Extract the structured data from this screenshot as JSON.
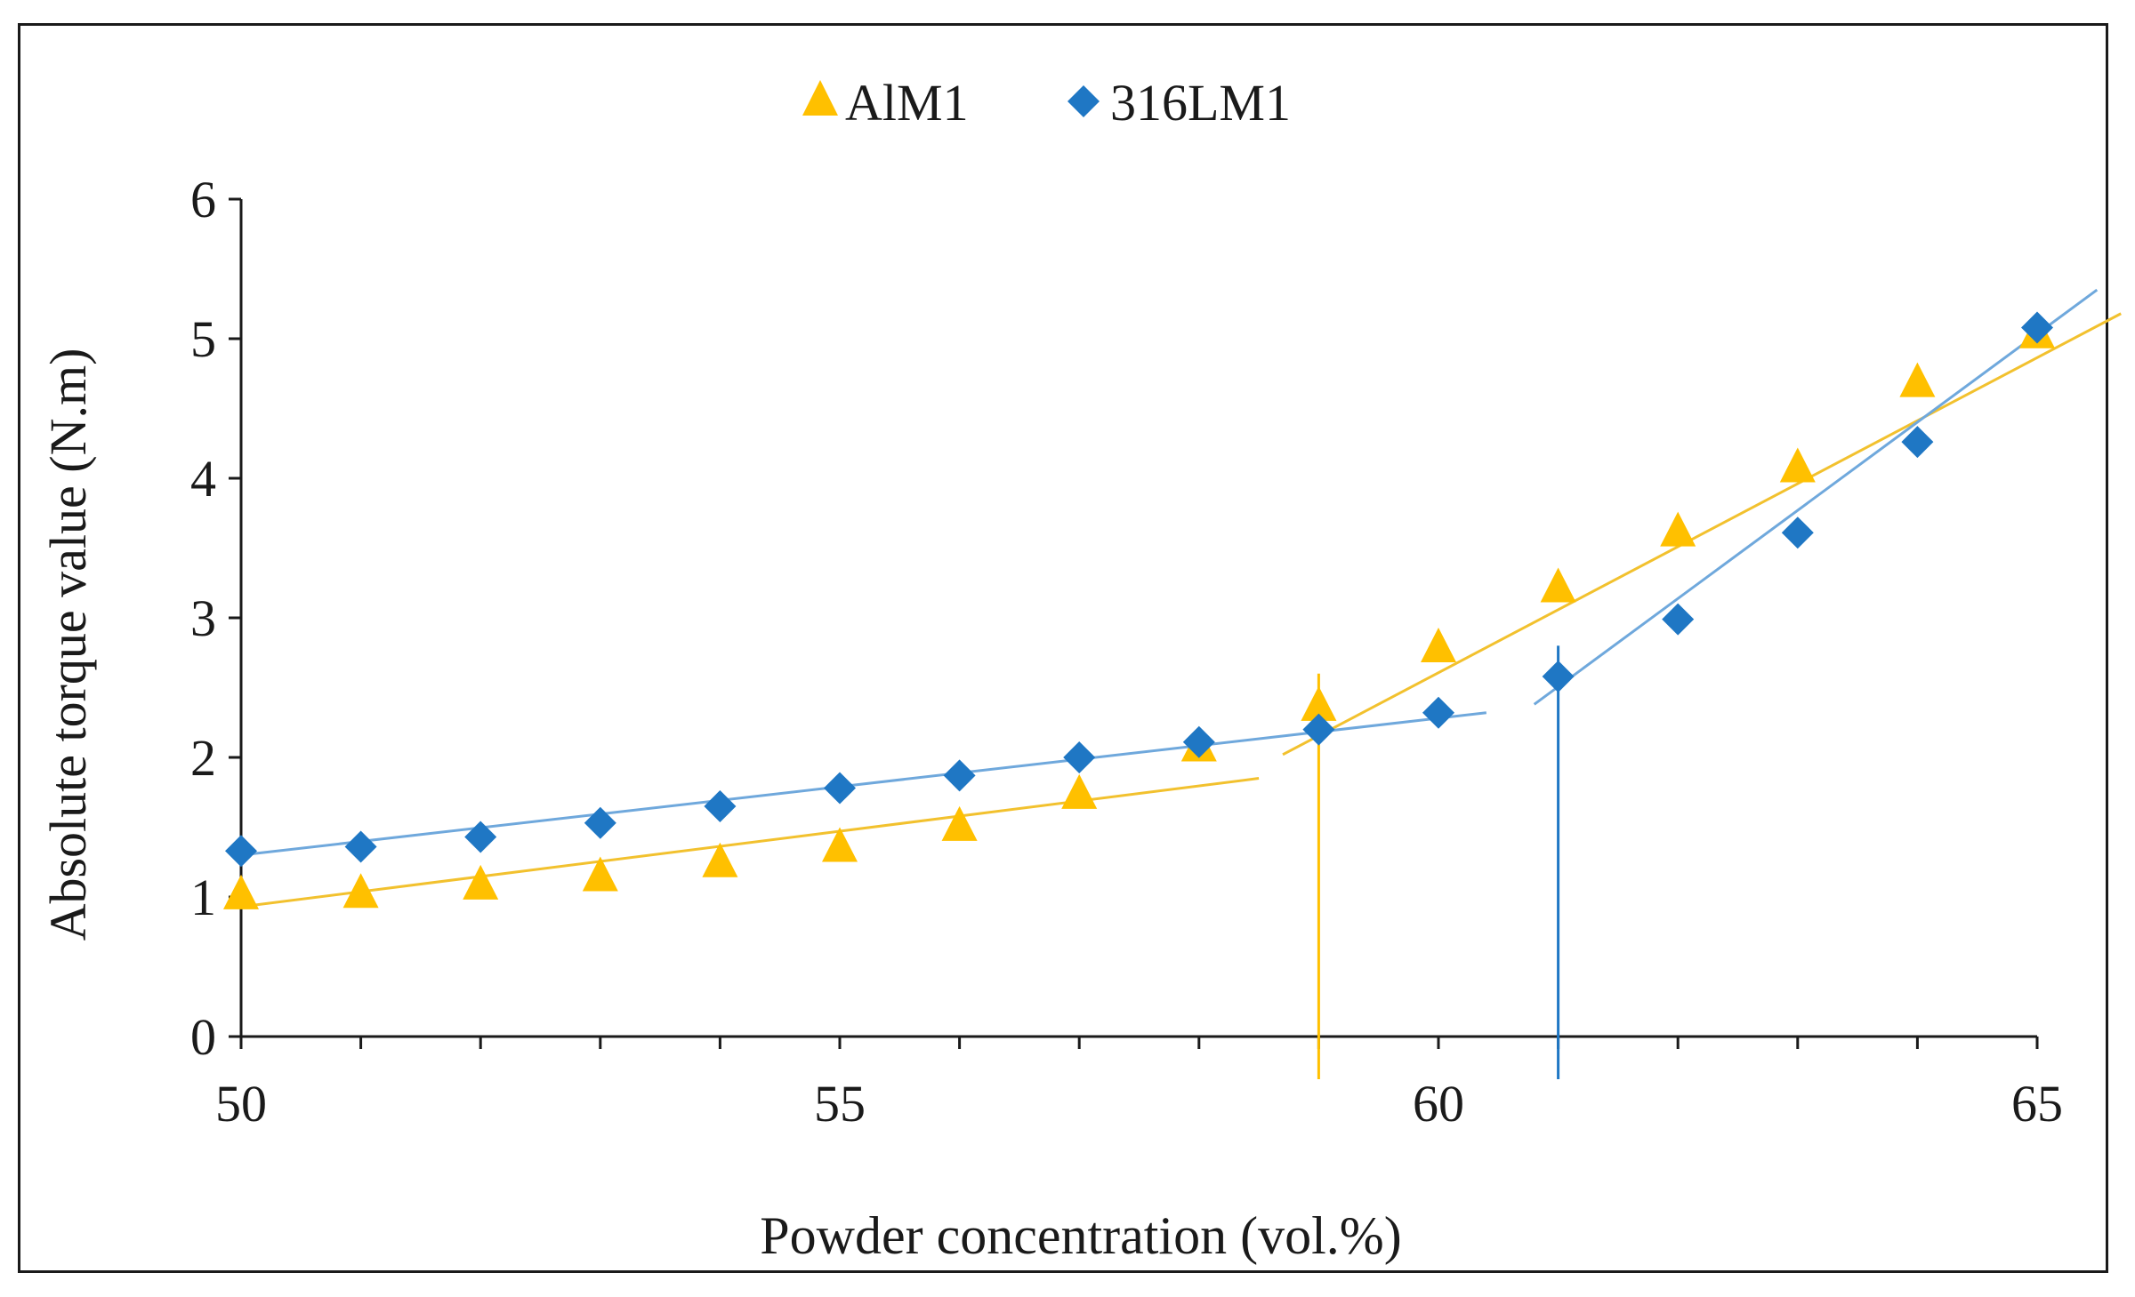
{
  "chart_data": {
    "type": "scatter",
    "title": "",
    "xlabel": "Powder concentration (vol.%)",
    "ylabel": "Absolute torque value  (N.m)",
    "xlim": [
      50,
      65
    ],
    "ylim": [
      0,
      6
    ],
    "xticks": [
      50,
      55,
      60,
      65
    ],
    "yticks": [
      0,
      1,
      2,
      3,
      4,
      5,
      6
    ],
    "legend_position": "top-center",
    "grid": false,
    "series": [
      {
        "name": "AlM1",
        "marker": "triangle",
        "color": "#FFC000",
        "x": [
          50,
          51,
          52,
          53,
          54,
          55,
          56,
          57,
          58,
          59,
          60,
          61,
          62,
          63,
          64,
          65
        ],
        "y": [
          1.02,
          1.03,
          1.09,
          1.15,
          1.25,
          1.36,
          1.51,
          1.74,
          2.08,
          2.37,
          2.79,
          3.22,
          3.62,
          4.08,
          4.69,
          5.04
        ],
        "fit_lines": [
          {
            "x": [
              50,
              58.5
            ],
            "y": [
              0.93,
              1.85
            ]
          },
          {
            "x": [
              58.7,
              65.7
            ],
            "y": [
              2.02,
              5.18
            ]
          }
        ],
        "critical_concentration": 59
      },
      {
        "name": "316LM1",
        "marker": "diamond",
        "color": "#1F77C4",
        "x": [
          50,
          51,
          52,
          53,
          54,
          55,
          56,
          57,
          58,
          59,
          60,
          61,
          62,
          63,
          64,
          65
        ],
        "y": [
          1.33,
          1.36,
          1.43,
          1.53,
          1.65,
          1.78,
          1.87,
          2.0,
          2.11,
          2.2,
          2.32,
          2.58,
          2.99,
          3.61,
          4.26,
          5.08
        ],
        "fit_lines": [
          {
            "x": [
              50,
              60.4
            ],
            "y": [
              1.3,
              2.32
            ]
          },
          {
            "x": [
              60.8,
              65.5
            ],
            "y": [
              2.38,
              5.35
            ]
          }
        ],
        "critical_concentration": 61
      }
    ]
  }
}
